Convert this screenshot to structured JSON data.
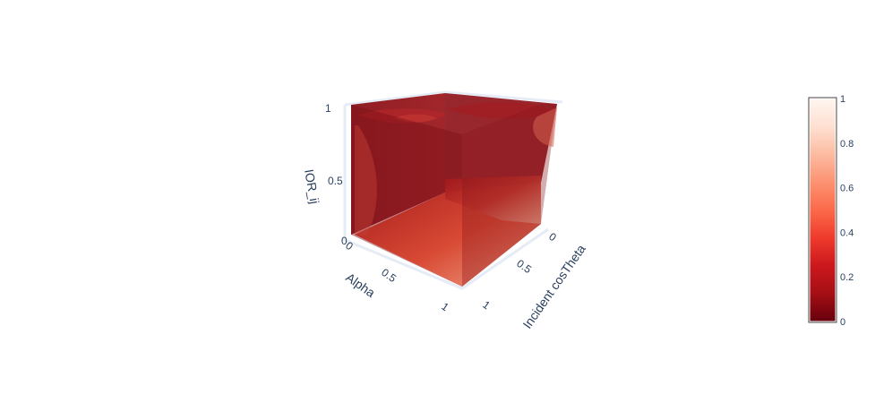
{
  "chart_data": {
    "type": "volume",
    "title": "",
    "axes": {
      "x": {
        "label": "Incident cosTheta",
        "range": [
          0,
          1
        ],
        "ticks": [
          "0",
          "0.5",
          "1"
        ]
      },
      "y": {
        "label": "Alpha",
        "range": [
          0,
          1
        ],
        "ticks": [
          "0",
          "0.5",
          "1"
        ]
      },
      "z": {
        "label": "IOR_ij",
        "range": [
          0,
          1
        ],
        "ticks": [
          "0",
          "0.5",
          "1"
        ]
      }
    },
    "colorscale": {
      "name": "Reds",
      "reversed": true,
      "range": [
        0,
        1
      ],
      "ticks": [
        "0",
        "0.2",
        "0.4",
        "0.6",
        "0.8",
        "1"
      ],
      "tick_values": [
        0,
        0.2,
        0.4,
        0.6,
        0.8,
        1
      ],
      "stops": [
        "#67000d",
        "#a50f15",
        "#cb181d",
        "#ef3b2c",
        "#fb6a4a",
        "#fc9272",
        "#fcbba1",
        "#fee0d2",
        "#fff5f0"
      ]
    },
    "grid": true
  },
  "colors": {
    "axis_text": "#2a3f5f",
    "grid": "#e5ecf6",
    "volume_dark": "#7a1016",
    "volume_mid": "#c0282a",
    "volume_light": "#f0a28c"
  }
}
